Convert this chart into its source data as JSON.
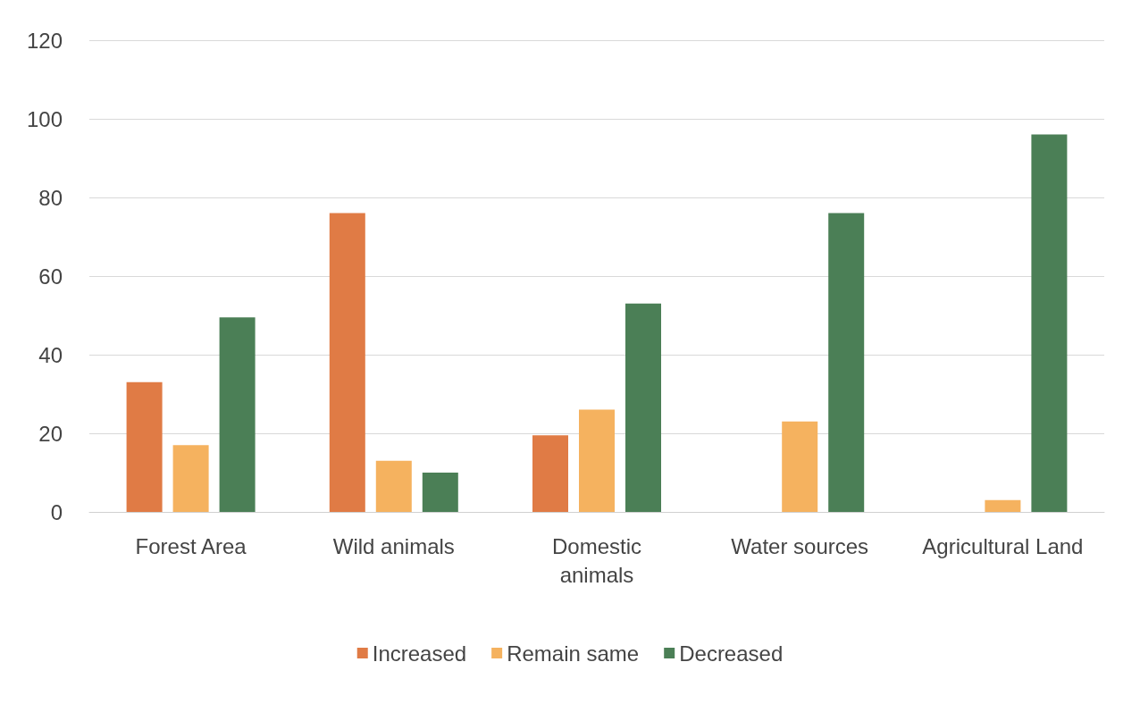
{
  "chart_data": {
    "type": "bar",
    "categories": [
      "Forest Area",
      "Wild animals",
      "Domestic\nanimals",
      "Water sources",
      "Agricultural Land"
    ],
    "series": [
      {
        "name": "Increased",
        "color": "#e07b45",
        "values": [
          33,
          76,
          19.5,
          0,
          0
        ]
      },
      {
        "name": "Remain same",
        "color": "#f5b25f",
        "values": [
          17,
          13,
          26,
          23,
          3
        ]
      },
      {
        "name": "Decreased",
        "color": "#4b7f56",
        "values": [
          49.5,
          10,
          53,
          76,
          96
        ]
      }
    ],
    "ylim": [
      0,
      120
    ],
    "yticks": [
      0,
      20,
      40,
      60,
      80,
      100,
      120
    ],
    "grid": "y",
    "legend": "bottom"
  }
}
